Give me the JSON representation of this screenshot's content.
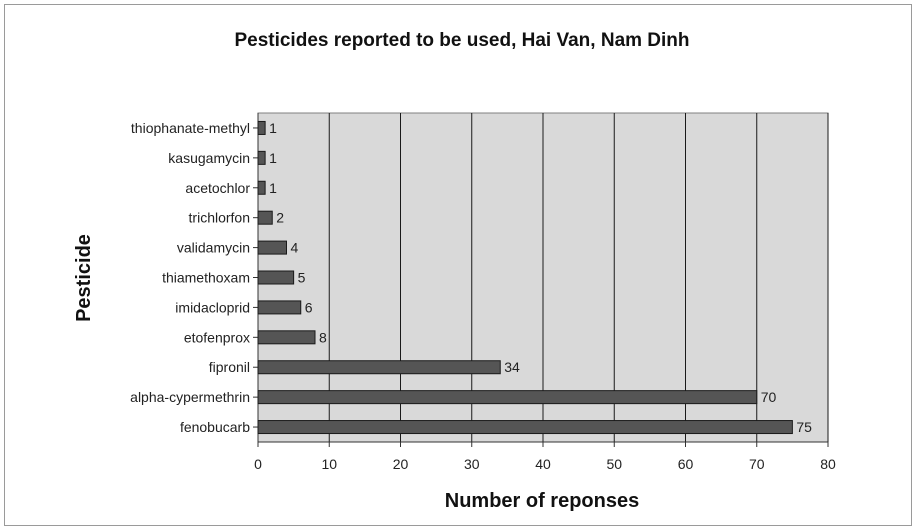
{
  "chart_data": {
    "type": "bar",
    "orientation": "horizontal",
    "title": "Pesticides reported to be used, Hai Van, Nam Dinh",
    "xlabel": "Number of reponses",
    "ylabel": "Pesticide",
    "categories": [
      "fenobucarb",
      "alpha-cypermethrin",
      "fipronil",
      "etofenprox",
      "imidacloprid",
      "thiamethoxam",
      "validamycin",
      "trichlorfon",
      "acetochlor",
      "kasugamycin",
      "thiophanate-methyl"
    ],
    "values": [
      75,
      70,
      34,
      8,
      6,
      5,
      4,
      2,
      1,
      1,
      1
    ],
    "xlim": [
      0,
      80
    ],
    "xticks": [
      0,
      10,
      20,
      30,
      40,
      50,
      60,
      70,
      80
    ],
    "grid": "vertical",
    "legend": "none",
    "colors": {
      "bar_fill": "#555555",
      "bar_stroke": "#1a1a1a",
      "plot_background": "#d9d9d9",
      "grid": "#1a1a1a"
    }
  }
}
